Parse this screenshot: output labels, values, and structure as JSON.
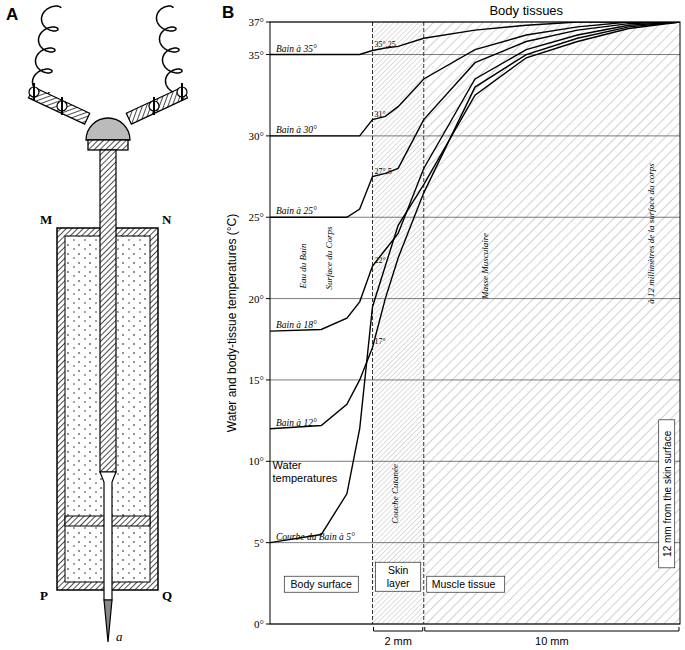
{
  "diagram": {
    "panel_label": "A",
    "corner_labels": [
      "M",
      "N",
      "P",
      "Q"
    ],
    "tip_label": "a"
  },
  "chart_data": {
    "type": "line",
    "panel_label": "B",
    "title": "Body tissues",
    "y_label": "Water and body-tissue temperatures (°C)",
    "x": [
      -4,
      -2,
      -1,
      -0.5,
      0,
      0.5,
      1,
      2,
      4,
      6,
      8,
      10,
      12
    ],
    "xlim": [
      -4,
      12
    ],
    "ylim": [
      0,
      37
    ],
    "yticks": [
      {
        "value": 0,
        "label": "0°"
      },
      {
        "value": 5,
        "label": "5°"
      },
      {
        "value": 10,
        "label": "10°"
      },
      {
        "value": 15,
        "label": "15°"
      },
      {
        "value": 20,
        "label": "20°"
      },
      {
        "value": 25,
        "label": "25°"
      },
      {
        "value": 30,
        "label": "30°"
      },
      {
        "value": 35,
        "label": "35°"
      },
      {
        "value": 37,
        "label": "37°"
      }
    ],
    "tick_labels": "y",
    "grid": true,
    "series": [
      {
        "name": "Bain à 35°",
        "color": "#000000",
        "values": [
          35,
          35,
          35,
          35,
          35.25,
          35.4,
          35.5,
          36,
          36.5,
          36.8,
          37,
          37,
          37
        ]
      },
      {
        "name": "Bain à 30°",
        "color": "#000000",
        "values": [
          30,
          30,
          30,
          30,
          31,
          31.2,
          31.8,
          33.5,
          35.3,
          36.2,
          36.7,
          37,
          37
        ]
      },
      {
        "name": "Bain à 25°",
        "color": "#000000",
        "values": [
          25,
          25,
          25,
          25.5,
          27.5,
          27.7,
          28,
          31,
          34.5,
          35.8,
          36.5,
          36.9,
          37
        ]
      },
      {
        "name": "Bain à 18°",
        "color": "#000000",
        "values": [
          18,
          18.1,
          18.8,
          19.8,
          22,
          23,
          24,
          28,
          33.5,
          35.3,
          36.2,
          36.8,
          37
        ]
      },
      {
        "name": "Bain à 12°",
        "color": "#000000",
        "values": [
          12,
          12.2,
          13.5,
          15,
          17,
          20,
          22.5,
          26.5,
          33,
          35,
          36,
          36.7,
          37
        ]
      },
      {
        "name": "Courbe du Bain à 5°",
        "color": "#000000",
        "values": [
          5,
          5.5,
          8,
          12,
          19.5,
          22,
          24.5,
          27,
          32.5,
          34.8,
          35.8,
          36.6,
          37
        ]
      }
    ],
    "annotations": [
      {
        "text": "35°,25",
        "x": 0,
        "y": 35.25
      },
      {
        "text": "31°",
        "x": 0,
        "y": 31
      },
      {
        "text": "27°,5",
        "x": 0,
        "y": 27.5
      },
      {
        "text": "22°",
        "x": 0,
        "y": 22
      },
      {
        "text": "17°",
        "x": 0,
        "y": 17
      }
    ],
    "vertical_notes": [
      {
        "text": "Eau du Bain",
        "x": -2.6,
        "y": 22
      },
      {
        "text": "Surface du Corps",
        "x": -1.6,
        "y": 22.5
      },
      {
        "text": "Couche Cutanée",
        "x": 1.0,
        "y": 8
      },
      {
        "text": "Masse Musculaire",
        "x": 4.5,
        "y": 22
      },
      {
        "text": "à 12 millimètres de la surface du corps",
        "x": 11.0,
        "y": 24
      }
    ],
    "region_notes": [
      {
        "text": "Water temperatures",
        "x": -3.9,
        "y": 9.5
      }
    ],
    "regions": [
      {
        "name": "Body surface",
        "start": -4,
        "end": 0
      },
      {
        "name": "Skin layer",
        "start": 0,
        "end": 2,
        "span_label": "2 mm"
      },
      {
        "name": "Muscle tissue",
        "start": 2,
        "end": 12,
        "span_label": "10 mm"
      }
    ],
    "depth_label": {
      "text": "12 mm from the skin surface",
      "x": 11.6,
      "y": 8
    }
  }
}
